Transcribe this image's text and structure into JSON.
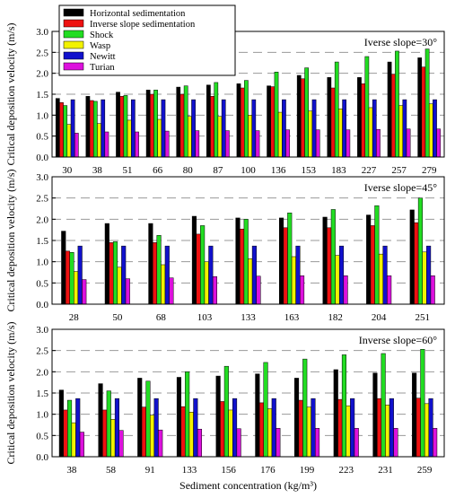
{
  "colors": {
    "Horizontal sedimentation": "#000000",
    "Inverse slope sedimentation": "#ee1111",
    "Shock": "#22dd22",
    "Wasp": "#f2f200",
    "Newitt": "#1111cc",
    "Turian": "#dd11dd"
  },
  "chart_data": [
    {
      "type": "bar",
      "annotation": "Iverse slope=30°",
      "categories": [
        "30",
        "38",
        "51",
        "66",
        "80",
        "87",
        "100",
        "136",
        "153",
        "183",
        "227",
        "257",
        "279"
      ],
      "ylim": [
        0,
        3.0
      ],
      "yticks": [
        "0.0",
        "0.5",
        "1.0",
        "1.5",
        "2.0",
        "2.5",
        "3.0"
      ],
      "ylabel": "Critical deposition velocity (m/s)",
      "xlabel": "",
      "legend": "top-left",
      "grid": "dashed-horizontal",
      "series": [
        {
          "name": "Horizontal sedimentation",
          "values": [
            1.4,
            1.45,
            1.55,
            1.6,
            1.67,
            1.72,
            1.75,
            1.7,
            1.95,
            1.9,
            1.9,
            2.27,
            2.37
          ]
        },
        {
          "name": "Inverse slope sedimentation",
          "values": [
            1.3,
            1.35,
            1.45,
            1.5,
            1.5,
            1.45,
            1.65,
            1.68,
            1.87,
            1.65,
            1.75,
            1.98,
            2.15
          ]
        },
        {
          "name": "Shock",
          "values": [
            1.23,
            1.33,
            1.47,
            1.6,
            1.7,
            1.78,
            1.83,
            2.03,
            2.13,
            2.27,
            2.4,
            2.53,
            2.58
          ]
        },
        {
          "name": "Wasp",
          "values": [
            0.78,
            0.8,
            0.88,
            0.9,
            0.97,
            0.97,
            1.0,
            1.07,
            1.1,
            1.15,
            1.18,
            1.23,
            1.27
          ]
        },
        {
          "name": "Newitt",
          "values": [
            1.37,
            1.37,
            1.37,
            1.37,
            1.37,
            1.37,
            1.37,
            1.37,
            1.37,
            1.37,
            1.37,
            1.37,
            1.37
          ]
        },
        {
          "name": "Turian",
          "values": [
            0.57,
            0.6,
            0.6,
            0.62,
            0.63,
            0.63,
            0.63,
            0.65,
            0.65,
            0.65,
            0.66,
            0.67,
            0.67
          ]
        }
      ]
    },
    {
      "type": "bar",
      "annotation": "Iverse slope=45°",
      "categories": [
        "28",
        "50",
        "68",
        "103",
        "133",
        "163",
        "182",
        "204",
        "251"
      ],
      "ylim": [
        0,
        3.0
      ],
      "yticks": [
        "0.0",
        "0.5",
        "1.0",
        "1.5",
        "2.0",
        "2.5",
        "3.0"
      ],
      "ylabel": "Critical deposition velocity (m/s)",
      "xlabel": "",
      "grid": "dashed-horizontal",
      "series": [
        {
          "name": "Horizontal sedimentation",
          "values": [
            1.72,
            1.9,
            1.9,
            2.07,
            2.03,
            2.03,
            2.05,
            2.1,
            2.22
          ]
        },
        {
          "name": "Inverse slope sedimentation",
          "values": [
            1.25,
            1.45,
            1.45,
            1.65,
            1.77,
            1.8,
            1.8,
            1.85,
            1.92
          ]
        },
        {
          "name": "Shock",
          "values": [
            1.22,
            1.47,
            1.62,
            1.85,
            2.0,
            2.15,
            2.23,
            2.32,
            2.5
          ]
        },
        {
          "name": "Wasp",
          "values": [
            0.77,
            0.87,
            0.93,
            1.0,
            1.07,
            1.12,
            1.15,
            1.18,
            1.23
          ]
        },
        {
          "name": "Newitt",
          "values": [
            1.37,
            1.37,
            1.37,
            1.37,
            1.37,
            1.37,
            1.37,
            1.37,
            1.37
          ]
        },
        {
          "name": "Turian",
          "values": [
            0.58,
            0.6,
            0.62,
            0.65,
            0.66,
            0.67,
            0.67,
            0.67,
            0.67
          ]
        }
      ]
    },
    {
      "type": "bar",
      "annotation": "Inverse slope=60°",
      "categories": [
        "38",
        "58",
        "91",
        "133",
        "156",
        "176",
        "199",
        "223",
        "231",
        "259"
      ],
      "ylim": [
        0,
        3.0
      ],
      "yticks": [
        "0.0",
        "0.5",
        "1.0",
        "1.5",
        "2.0",
        "2.5",
        "3.0"
      ],
      "ylabel": "Critical deposition velocity (m/s)",
      "xlabel": "Sediment concentration (kg/m³)",
      "grid": "dashed-horizontal",
      "series": [
        {
          "name": "Horizontal sedimentation",
          "values": [
            1.57,
            1.72,
            1.85,
            1.87,
            1.9,
            1.95,
            1.85,
            2.05,
            1.97,
            1.97
          ]
        },
        {
          "name": "Inverse slope sedimentation",
          "values": [
            1.1,
            1.1,
            1.17,
            1.18,
            1.3,
            1.27,
            1.33,
            1.35,
            1.37,
            1.38
          ]
        },
        {
          "name": "Shock",
          "values": [
            1.33,
            1.55,
            1.78,
            2.0,
            2.13,
            2.22,
            2.3,
            2.4,
            2.43,
            2.53
          ]
        },
        {
          "name": "Wasp",
          "values": [
            0.8,
            0.88,
            0.98,
            1.05,
            1.1,
            1.13,
            1.17,
            1.2,
            1.22,
            1.25
          ]
        },
        {
          "name": "Newitt",
          "values": [
            1.37,
            1.37,
            1.37,
            1.37,
            1.37,
            1.37,
            1.37,
            1.37,
            1.37,
            1.37
          ]
        },
        {
          "name": "Turian",
          "values": [
            0.58,
            0.62,
            0.63,
            0.65,
            0.66,
            0.67,
            0.67,
            0.67,
            0.67,
            0.67
          ]
        }
      ]
    }
  ]
}
